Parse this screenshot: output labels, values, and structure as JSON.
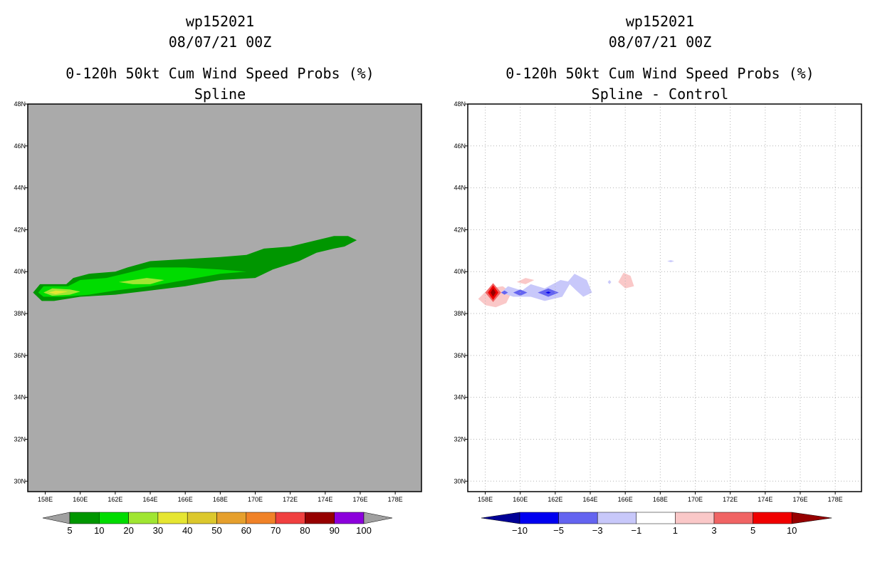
{
  "left": {
    "title_line1": "wp152021",
    "title_line2": "08/07/21 00Z",
    "title_line3": "0-120h 50kt Cum Wind Speed Probs (%)",
    "title_line4": "Spline"
  },
  "right": {
    "title_line1": "wp152021",
    "title_line2": "08/07/21 00Z",
    "title_line3": "0-120h 50kt Cum Wind Speed Probs (%)",
    "title_line4": "Spline - Control"
  },
  "chart_data": [
    {
      "type": "heatmap",
      "title": "0-120h 50kt Cum Wind Speed Probs (%) Spline",
      "xlim": [
        157,
        179.5
      ],
      "ylim": [
        29.5,
        48
      ],
      "x_ticks": [
        "158E",
        "160E",
        "162E",
        "164E",
        "166E",
        "168E",
        "170E",
        "172E",
        "174E",
        "176E",
        "178E"
      ],
      "y_ticks": [
        "30N",
        "32N",
        "34N",
        "36N",
        "38N",
        "40N",
        "42N",
        "44N",
        "46N",
        "48N"
      ],
      "background_color": "#aaaaaa",
      "grid": false,
      "colorbar_labels": [
        "5",
        "10",
        "20",
        "30",
        "40",
        "50",
        "60",
        "70",
        "80",
        "90",
        "100"
      ],
      "colorbar_colors": [
        "#009600",
        "#00dc00",
        "#a0e632",
        "#e6e632",
        "#dcc82d",
        "#e6a02d",
        "#f08228",
        "#f04040",
        "#960000",
        "#8c00dc"
      ],
      "contours": [
        {
          "level": "5-10",
          "color": "#009600",
          "points": [
            [
              157.3,
              39
            ],
            [
              157.7,
              39.4
            ],
            [
              159.2,
              39.4
            ],
            [
              159.6,
              39.7
            ],
            [
              160.5,
              39.9
            ],
            [
              162,
              40
            ],
            [
              162.7,
              40.2
            ],
            [
              164,
              40.5
            ],
            [
              166,
              40.6
            ],
            [
              168,
              40.7
            ],
            [
              169.5,
              40.8
            ],
            [
              170.5,
              41.1
            ],
            [
              172,
              41.2
            ],
            [
              173.5,
              41.5
            ],
            [
              174.5,
              41.7
            ],
            [
              175.3,
              41.7
            ],
            [
              175.8,
              41.5
            ],
            [
              175.1,
              41.2
            ],
            [
              174.5,
              41.1
            ],
            [
              173.5,
              40.9
            ],
            [
              172.5,
              40.5
            ],
            [
              171,
              40.1
            ],
            [
              170,
              39.7
            ],
            [
              168,
              39.6
            ],
            [
              166,
              39.3
            ],
            [
              164,
              39.1
            ],
            [
              162,
              38.9
            ],
            [
              160,
              38.8
            ],
            [
              158.5,
              38.6
            ],
            [
              157.8,
              38.6
            ]
          ]
        },
        {
          "level": "10-20",
          "color": "#00dc00",
          "points": [
            [
              157.6,
              39
            ],
            [
              157.9,
              39.3
            ],
            [
              159.3,
              39.3
            ],
            [
              160,
              39.6
            ],
            [
              161.5,
              39.7
            ],
            [
              162.5,
              39.9
            ],
            [
              164,
              40.2
            ],
            [
              166,
              40.2
            ],
            [
              168,
              40.1
            ],
            [
              169.5,
              40
            ],
            [
              168,
              39.9
            ],
            [
              166,
              39.6
            ],
            [
              164,
              39.3
            ],
            [
              162,
              39.1
            ],
            [
              160.5,
              38.9
            ],
            [
              159,
              38.8
            ],
            [
              157.9,
              38.8
            ]
          ]
        },
        {
          "level": "20-30",
          "color": "#a0e632",
          "points": [
            [
              157.9,
              39
            ],
            [
              158.4,
              39.2
            ],
            [
              159.4,
              39.15
            ],
            [
              160,
              39.05
            ],
            [
              159.4,
              38.9
            ],
            [
              158.4,
              38.85
            ]
          ]
        },
        {
          "level": "20-30",
          "color": "#a0e632",
          "points": [
            [
              162.2,
              39.5
            ],
            [
              163,
              39.6
            ],
            [
              163.8,
              39.7
            ],
            [
              164.8,
              39.6
            ],
            [
              164,
              39.4
            ],
            [
              163,
              39.4
            ]
          ]
        },
        {
          "level": "30-40",
          "color": "#e6e632",
          "points": [
            [
              158.2,
              39
            ],
            [
              158.6,
              39.1
            ],
            [
              159.3,
              39.05
            ],
            [
              158.6,
              38.92
            ]
          ]
        }
      ]
    },
    {
      "type": "heatmap",
      "title": "0-120h 50kt Cum Wind Speed Probs (%) Spline - Control",
      "xlim": [
        157,
        179.5
      ],
      "ylim": [
        29.5,
        48
      ],
      "x_ticks": [
        "158E",
        "160E",
        "162E",
        "164E",
        "166E",
        "168E",
        "170E",
        "172E",
        "174E",
        "176E",
        "178E"
      ],
      "y_ticks": [
        "30N",
        "32N",
        "34N",
        "36N",
        "38N",
        "40N",
        "42N",
        "44N",
        "46N",
        "48N"
      ],
      "background_color": "#ffffff",
      "grid": true,
      "colorbar_labels": [
        "-10",
        "-5",
        "-3",
        "-1",
        "1",
        "3",
        "5",
        "10"
      ],
      "colorbar_colors": [
        "#000096",
        "#0000f0",
        "#6464f0",
        "#c8c8fa",
        "#ffffff",
        "#fac8c8",
        "#f06464",
        "#f00000",
        "#960000"
      ],
      "contours": [
        {
          "level": "1 to 3",
          "color": "#fac8c8",
          "points": [
            [
              157.6,
              38.7
            ],
            [
              158.2,
              39.2
            ],
            [
              159,
              39.3
            ],
            [
              159.5,
              39
            ],
            [
              159.2,
              38.5
            ],
            [
              158.6,
              38.3
            ],
            [
              158,
              38.4
            ]
          ]
        },
        {
          "level": "1 to 3",
          "color": "#fac8c8",
          "points": [
            [
              159.8,
              39.5
            ],
            [
              160.3,
              39.7
            ],
            [
              160.8,
              39.6
            ],
            [
              160.3,
              39.4
            ]
          ]
        },
        {
          "level": "1 to 3",
          "color": "#fac8c8",
          "points": [
            [
              165.6,
              39.5
            ],
            [
              165.9,
              39.95
            ],
            [
              166.3,
              39.8
            ],
            [
              166.5,
              39.3
            ],
            [
              166,
              39.2
            ]
          ]
        },
        {
          "level": "3 to 5",
          "color": "#f06464",
          "points": [
            [
              158,
              39
            ],
            [
              158.45,
              39.45
            ],
            [
              158.9,
              39
            ],
            [
              158.45,
              38.55
            ]
          ]
        },
        {
          "level": "5 to 10",
          "color": "#f00000",
          "points": [
            [
              158.15,
              39
            ],
            [
              158.45,
              39.35
            ],
            [
              158.75,
              39
            ],
            [
              158.45,
              38.65
            ]
          ]
        },
        {
          "level": "> 10",
          "color": "#960000",
          "points": [
            [
              158.3,
              39
            ],
            [
              158.45,
              39.2
            ],
            [
              158.6,
              39
            ],
            [
              158.45,
              38.8
            ]
          ]
        },
        {
          "level": "-1 to -3",
          "color": "#c8c8fa",
          "points": [
            [
              158.9,
              39
            ],
            [
              159.3,
              39.3
            ],
            [
              160.1,
              39.1
            ],
            [
              160.6,
              39.4
            ],
            [
              161.4,
              39.2
            ],
            [
              162.3,
              39.6
            ],
            [
              162.9,
              39.5
            ],
            [
              162.4,
              38.8
            ],
            [
              161.4,
              38.6
            ],
            [
              160.6,
              38.8
            ],
            [
              159.6,
              38.8
            ]
          ]
        },
        {
          "level": "-1 to -3",
          "color": "#c8c8fa",
          "points": [
            [
              162.7,
              39.5
            ],
            [
              163.1,
              39.9
            ],
            [
              163.8,
              39.6
            ],
            [
              164.1,
              39
            ],
            [
              163.6,
              38.8
            ],
            [
              163.2,
              39.1
            ]
          ]
        },
        {
          "level": "-1 to -3",
          "color": "#c8c8fa",
          "points": [
            [
              165,
              39.5
            ],
            [
              165.1,
              39.6
            ],
            [
              165.2,
              39.5
            ],
            [
              165.1,
              39.4
            ]
          ]
        },
        {
          "level": "-1 to -3",
          "color": "#c8c8fa",
          "points": [
            [
              168.4,
              40.5
            ],
            [
              168.6,
              40.55
            ],
            [
              168.8,
              40.5
            ],
            [
              168.6,
              40.45
            ]
          ]
        },
        {
          "level": "-3 to -5",
          "color": "#6464f0",
          "points": [
            [
              159.6,
              39
            ],
            [
              160,
              39.15
            ],
            [
              160.4,
              39
            ],
            [
              160,
              38.85
            ]
          ]
        },
        {
          "level": "-3 to -5",
          "color": "#6464f0",
          "points": [
            [
              161,
              39
            ],
            [
              161.6,
              39.2
            ],
            [
              162.2,
              39
            ],
            [
              161.6,
              38.8
            ]
          ]
        },
        {
          "level": "-3 to -5",
          "color": "#6464f0",
          "points": [
            [
              158.9,
              39
            ],
            [
              159.1,
              39.1
            ],
            [
              159.3,
              39
            ],
            [
              159.1,
              38.9
            ]
          ]
        },
        {
          "level": "-5 to -10",
          "color": "#0000f0",
          "points": [
            [
              161.45,
              39
            ],
            [
              161.6,
              39.05
            ],
            [
              161.75,
              39
            ],
            [
              161.6,
              38.95
            ]
          ]
        }
      ]
    }
  ]
}
